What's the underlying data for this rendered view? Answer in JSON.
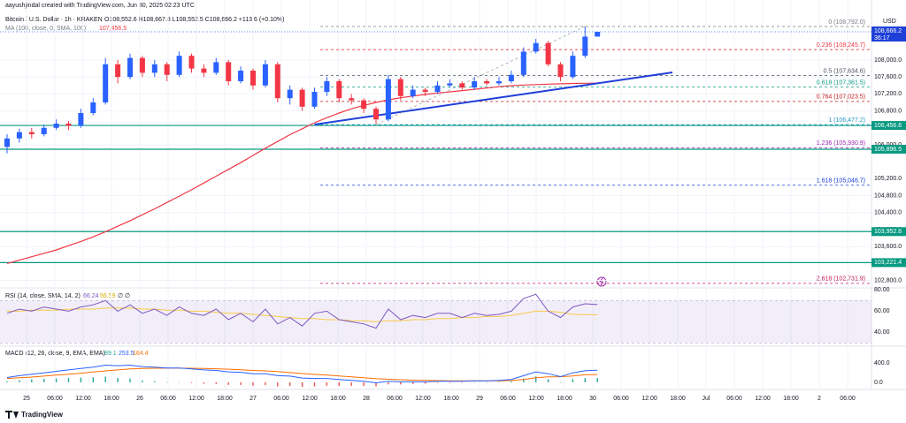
{
  "chart_data": {
    "type": "candlestick",
    "attribution": "aayushjindal created with TradingView.com, Jun 30, 2025 02:23 UTC",
    "title": "Bitcoin / U.S. Dollar · 1h · KRAKEN",
    "ohlc_text": "O108,552.6 H108,667.8 L108,552.5 C108,666.2 +113.6 (+0.10%)",
    "ma_label": "MA (100, close, 0, SMA, 100)",
    "ma_value_label": "107,456.5",
    "currency": "USD",
    "last_price_label": "108,666.2",
    "countdown": "36:17",
    "brand": "TradingView",
    "up_color": "#2962ff",
    "down_color": "#f23645",
    "ma_color": "#f23645",
    "ylim": [
      102646,
      108958
    ],
    "yticks": [
      {
        "value": 108000,
        "label": "108,000.0"
      },
      {
        "value": 107600,
        "label": "107,600.0"
      },
      {
        "value": 107200,
        "label": "107,200.0"
      },
      {
        "value": 106800,
        "label": "106,800.0"
      },
      {
        "value": 106000,
        "label": "106,000.0"
      },
      {
        "value": 105200,
        "label": "105,200.0"
      },
      {
        "value": 104800,
        "label": "104,800.0"
      },
      {
        "value": 104400,
        "label": "104,400.0"
      },
      {
        "value": 104000,
        "label": "104,000.0"
      },
      {
        "value": 103600,
        "label": "103,600.0"
      },
      {
        "value": 102800,
        "label": "102,800.0"
      }
    ],
    "categories": [
      "25",
      "06:00",
      "12:00",
      "18:00",
      "26",
      "06:00",
      "12:00",
      "18:00",
      "27",
      "06:00",
      "12:00",
      "18:00",
      "28",
      "06:00",
      "12:00",
      "18:00",
      "29",
      "06:00",
      "12:00",
      "18:00",
      "30",
      "06:00",
      "12:00",
      "18:00",
      "Jul",
      "06:00",
      "12:00",
      "18:00",
      "2",
      "06:00"
    ],
    "candles": [
      [
        105950,
        106250,
        105800,
        106150
      ],
      [
        106150,
        106380,
        106050,
        106300
      ],
      [
        106300,
        106400,
        106150,
        106250
      ],
      [
        106250,
        106480,
        106200,
        106400
      ],
      [
        106400,
        106600,
        106350,
        106500
      ],
      [
        106500,
        106560,
        106350,
        106450
      ],
      [
        106450,
        106850,
        106400,
        106750
      ],
      [
        106750,
        107100,
        106700,
        107000
      ],
      [
        107000,
        108050,
        106950,
        107900
      ],
      [
        107900,
        108000,
        107450,
        107600
      ],
      [
        107600,
        108150,
        107550,
        108050
      ],
      [
        108050,
        108100,
        107600,
        107700
      ],
      [
        107700,
        108000,
        107600,
        107900
      ],
      [
        107900,
        107950,
        107500,
        107650
      ],
      [
        107650,
        108200,
        107600,
        108100
      ],
      [
        108100,
        108150,
        107700,
        107800
      ],
      [
        107800,
        107900,
        107600,
        107700
      ],
      [
        107700,
        108050,
        107650,
        107950
      ],
      [
        107950,
        108000,
        107400,
        107500
      ],
      [
        107500,
        107850,
        107450,
        107750
      ],
      [
        107750,
        107800,
        107300,
        107400
      ],
      [
        107400,
        108000,
        107350,
        107900
      ],
      [
        107900,
        107950,
        107000,
        107100
      ],
      [
        107100,
        107400,
        106950,
        107300
      ],
      [
        107300,
        107350,
        106800,
        106900
      ],
      [
        106900,
        107350,
        106850,
        107250
      ],
      [
        107250,
        107600,
        107150,
        107500
      ],
      [
        107500,
        107550,
        107000,
        107100
      ],
      [
        107100,
        107200,
        106950,
        107050
      ],
      [
        107050,
        107100,
        106750,
        106850
      ],
      [
        106850,
        106900,
        106500,
        106600
      ],
      [
        106600,
        107650,
        106550,
        107550
      ],
      [
        107550,
        107600,
        107050,
        107150
      ],
      [
        107150,
        107400,
        107100,
        107300
      ],
      [
        107300,
        107350,
        107150,
        107250
      ],
      [
        107250,
        107500,
        107200,
        107400
      ],
      [
        107400,
        107550,
        107350,
        107450
      ],
      [
        107450,
        107500,
        107300,
        107350
      ],
      [
        107350,
        107600,
        107300,
        107500
      ],
      [
        107500,
        107550,
        107400,
        107450
      ],
      [
        107450,
        107600,
        107400,
        107500
      ],
      [
        107500,
        107750,
        107450,
        107650
      ],
      [
        107650,
        108300,
        107600,
        108200
      ],
      [
        108200,
        108500,
        108150,
        108400
      ],
      [
        108400,
        108450,
        107850,
        107900
      ],
      [
        107900,
        107950,
        107500,
        107600
      ],
      [
        107600,
        108200,
        107550,
        108100
      ],
      [
        108100,
        108792,
        108050,
        108552.6
      ],
      [
        108552.6,
        108667.8,
        108552.5,
        108666.2
      ]
    ],
    "ma": [
      103200,
      103280,
      103360,
      103440,
      103520,
      103620,
      103720,
      103830,
      103950,
      104080,
      104210,
      104350,
      104490,
      104640,
      104790,
      104940,
      105100,
      105260,
      105420,
      105580,
      105750,
      105920,
      106080,
      106240,
      106380,
      106520,
      106640,
      106750,
      106850,
      106930,
      107000,
      107060,
      107110,
      107150,
      107190,
      107220,
      107250,
      107280,
      107310,
      107340,
      107370,
      107395,
      107410,
      107420,
      107430,
      107440,
      107447,
      107452,
      107456.5
    ],
    "trendline": {
      "color": "#1e3fd8",
      "values": [
        106479,
        107708
      ]
    },
    "support_color": "#089981",
    "supports": [
      {
        "value": 106456.6,
        "label": "106,456.6"
      },
      {
        "value": 105896.5,
        "label": "105,896.5"
      },
      {
        "value": 103952.6,
        "label": "103,952.6"
      },
      {
        "value": 103221.4,
        "label": "103,221.4"
      }
    ],
    "fib": [
      {
        "value": 108792.0,
        "label": "0 (108,792.0)",
        "color": "#787b86"
      },
      {
        "value": 108245.7,
        "label": "0.236 (108,245.7)",
        "color": "#f23645"
      },
      {
        "value": 107634.6,
        "label": "0.5 (107,634.6)",
        "color": "#4c525e"
      },
      {
        "value": 107361.5,
        "label": "0.618 (107,361.5)",
        "color": "#089981"
      },
      {
        "value": 107023.5,
        "label": "0.764 (107,023.5)",
        "color": "#c21d1d"
      },
      {
        "value": 106477.2,
        "label": "1 (106,477.2)",
        "color": "#2196c0"
      },
      {
        "value": 105930.9,
        "label": "1.236 (105,930.9)",
        "color": "#9c27b0"
      },
      {
        "value": 105046.7,
        "label": "1.618 (105,046.7)",
        "color": "#1e3fd8"
      },
      {
        "value": 102731.9,
        "label": "2.618 (102,731.9)",
        "color": "#c2185b"
      }
    ],
    "rsi": {
      "label": "RSI (14, close, SMA, 14, 2)",
      "value_label": "66.24",
      "ma_value_label": "56.59",
      "extra": "∅ ∅",
      "color": "#7e57c2",
      "ma_color": "#f7c948",
      "ylim": [
        27,
        82
      ],
      "yticks": [
        {
          "value": 80,
          "label": "80.00"
        },
        {
          "value": 60,
          "label": "60.00"
        },
        {
          "value": 40,
          "label": "40.00"
        }
      ],
      "band": [
        30,
        70
      ],
      "values": [
        58,
        62,
        60,
        64,
        62,
        60,
        64,
        66,
        70,
        60,
        66,
        58,
        62,
        56,
        64,
        58,
        56,
        62,
        52,
        58,
        50,
        62,
        48,
        54,
        46,
        58,
        60,
        52,
        50,
        48,
        44,
        62,
        52,
        56,
        54,
        58,
        58,
        54,
        58,
        56,
        57,
        60,
        72,
        76,
        60,
        54,
        64,
        67,
        66.24
      ],
      "ma": [
        60,
        60,
        61,
        61,
        61,
        62,
        62,
        62,
        63,
        63,
        63,
        62,
        62,
        61,
        61,
        60,
        60,
        59,
        58,
        58,
        57,
        56,
        55,
        54,
        53,
        53,
        52,
        52,
        51,
        51,
        50,
        51,
        51,
        52,
        52,
        53,
        53,
        54,
        54,
        55,
        55,
        56,
        58,
        60,
        60,
        59,
        57,
        56.8,
        56.59
      ]
    },
    "macd": {
      "label": "MACD (12, 26, close, 9, EMA, EMA)",
      "hist_label": "89.1",
      "macd_label": "253.5",
      "signal_label": "164.4",
      "macd_color": "#2962ff",
      "signal_color": "#ff6d00",
      "hist_up": "#26a69a",
      "hist_down": "#ef5350",
      "ylim": [
        -150,
        760
      ],
      "yticks": [
        {
          "value": 400,
          "label": "400.0"
        },
        {
          "value": 0,
          "label": "0.0"
        }
      ],
      "macd": [
        100,
        140,
        170,
        200,
        230,
        260,
        290,
        320,
        360,
        350,
        360,
        330,
        320,
        300,
        300,
        280,
        260,
        250,
        220,
        210,
        180,
        180,
        140,
        130,
        90,
        80,
        80,
        60,
        40,
        20,
        -10,
        20,
        10,
        10,
        10,
        20,
        20,
        20,
        30,
        30,
        40,
        60,
        140,
        220,
        180,
        120,
        200,
        245,
        253.5
      ],
      "signal": [
        80,
        95,
        110,
        130,
        150,
        170,
        190,
        215,
        240,
        260,
        280,
        290,
        295,
        297,
        298,
        295,
        290,
        285,
        275,
        265,
        250,
        240,
        225,
        205,
        185,
        165,
        150,
        135,
        115,
        95,
        75,
        65,
        55,
        45,
        40,
        35,
        32,
        30,
        30,
        30,
        32,
        38,
        60,
        95,
        115,
        118,
        135,
        158,
        164.4
      ],
      "hist": [
        20,
        45,
        60,
        70,
        80,
        90,
        100,
        105,
        120,
        90,
        80,
        40,
        25,
        3,
        2,
        -15,
        -30,
        -35,
        -55,
        -55,
        -70,
        -60,
        -85,
        -75,
        -95,
        -85,
        -70,
        -75,
        -75,
        -75,
        -85,
        -45,
        -45,
        -35,
        -30,
        -15,
        -12,
        -10,
        0,
        0,
        8,
        22,
        80,
        125,
        65,
        2,
        65,
        87,
        89.1
      ]
    }
  }
}
